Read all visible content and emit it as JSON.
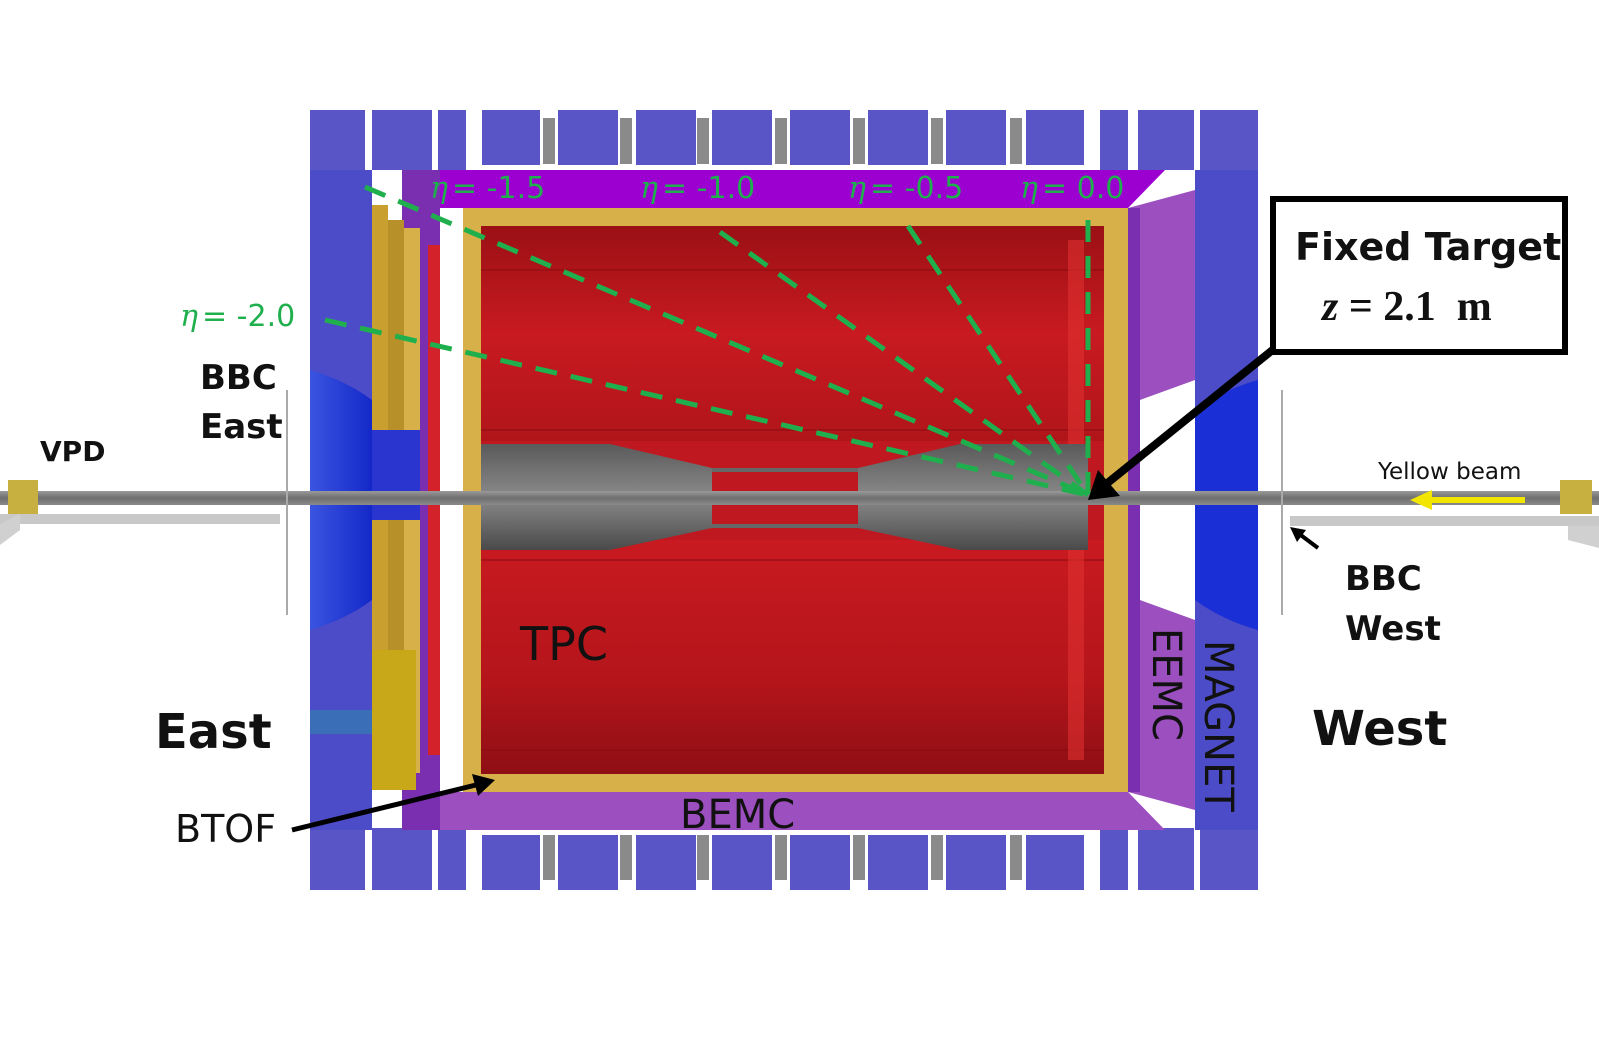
{
  "eta_symbol": "η",
  "eta_labels": [
    {
      "id": "eta-2-0",
      "value": "= -2.0"
    },
    {
      "id": "eta-1-5",
      "value": "= -1.5"
    },
    {
      "id": "eta-1-0",
      "value": "= -1.0"
    },
    {
      "id": "eta-0-5",
      "value": "= -0.5"
    },
    {
      "id": "eta-0-0",
      "value": "= 0.0"
    }
  ],
  "labels": {
    "vpd": "VPD",
    "bbc_east_1": "BBC",
    "bbc_east_2": "East",
    "bbc_west_1": "BBC",
    "bbc_west_2": "West",
    "yellow_beam": "Yellow beam",
    "tpc": "TPC",
    "bemc": "BEMC",
    "eemc": "EEMC",
    "magnet": "MAGNET",
    "btof": "BTOF",
    "east": "East",
    "west": "West"
  },
  "fixed_target": {
    "line1": "Fixed Target",
    "line2_var": "z",
    "line2_rest": " = 2.1  m"
  },
  "colors": {
    "magnet": "#5454c8",
    "magnet_dark": "#1a2fd6",
    "bemc": "#a64dc9",
    "tpc": "#c0141c",
    "btof": "#d8b04a",
    "eta_lines": "#1fb04d",
    "beam_arrow": "#f2e600"
  }
}
